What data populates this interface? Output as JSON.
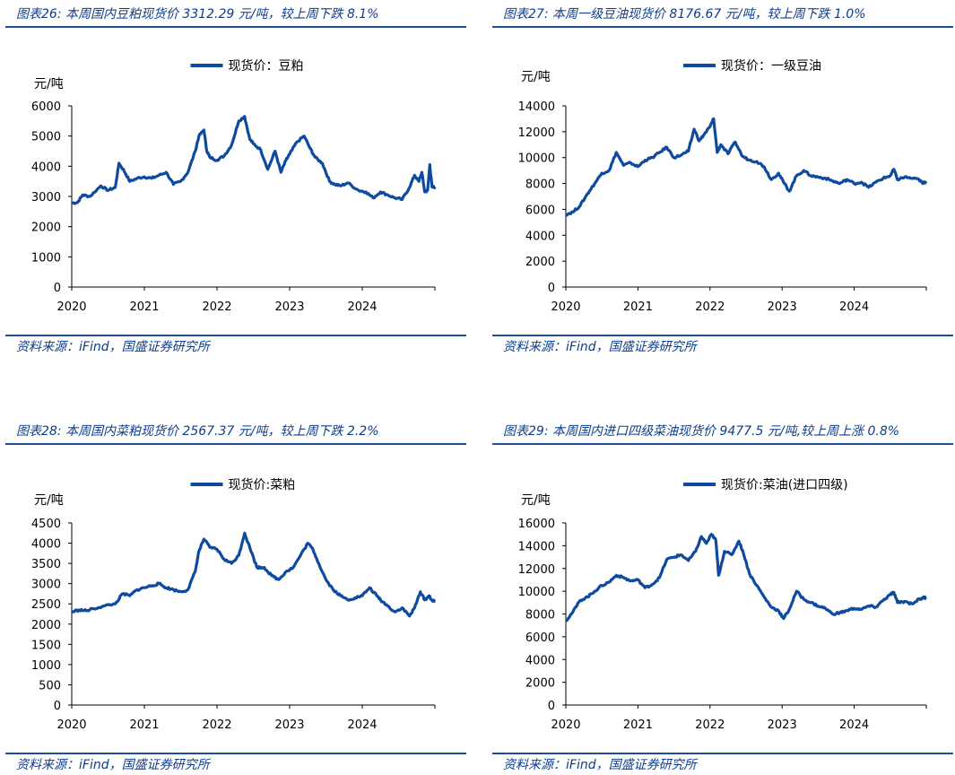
{
  "source": "资料来源：iFind，国盛证券研究所",
  "colors": {
    "line": "#0d4aa0",
    "accent": "#1f4e9c",
    "text": "#0d3d8c"
  },
  "panels": [
    {
      "title": "图表26:  本周国内豆粕现货价 3312.29 元/吨，较上周下跌 8.1%",
      "chart_data": {
        "type": "line",
        "legend": "现货价：豆粕",
        "ylabel": "元/吨",
        "ylim": [
          0,
          6000
        ],
        "yticks": [
          0,
          1000,
          2000,
          3000,
          4000,
          5000,
          6000
        ],
        "xticks": [
          "2020",
          "2021",
          "2022",
          "2023",
          "2024"
        ],
        "xlim": [
          2020.0,
          2025.0
        ],
        "series": [
          {
            "x": [
              2020.0,
              2020.08,
              2020.15,
              2020.25,
              2020.4,
              2020.5,
              2020.6,
              2020.65,
              2020.72,
              2020.8,
              2020.9,
              2021.0,
              2021.1,
              2021.2,
              2021.3,
              2021.4,
              2021.5,
              2021.6,
              2021.7,
              2021.75,
              2021.82,
              2021.86,
              2021.9,
              2022.0,
              2022.1,
              2022.2,
              2022.3,
              2022.38,
              2022.45,
              2022.5,
              2022.6,
              2022.7,
              2022.8,
              2022.88,
              2022.95,
              2023.0,
              2023.1,
              2023.2,
              2023.28,
              2023.35,
              2023.45,
              2023.55,
              2023.62,
              2023.7,
              2023.8,
              2023.95,
              2024.05,
              2024.15,
              2024.25,
              2024.35,
              2024.45,
              2024.55,
              2024.65,
              2024.72,
              2024.78,
              2024.82,
              2024.86,
              2024.9,
              2024.93,
              2024.96,
              2025.0
            ],
            "y": [
              2780,
              2800,
              3050,
              3000,
              3350,
              3200,
              3300,
              4100,
              3850,
              3500,
              3600,
              3650,
              3600,
              3700,
              3800,
              3400,
              3500,
              3800,
              4500,
              5000,
              5200,
              4500,
              4300,
              4200,
              4350,
              4700,
              5500,
              5650,
              4900,
              4750,
              4550,
              3900,
              4500,
              3800,
              4200,
              4400,
              4800,
              5000,
              4600,
              4300,
              4100,
              3500,
              3400,
              3350,
              3450,
              3200,
              3150,
              2950,
              3150,
              3050,
              2950,
              2900,
              3300,
              3700,
              3500,
              3800,
              3150,
              3200,
              4050,
              3312,
              3312
            ]
          }
        ]
      }
    },
    {
      "title": "图表27:  本周一级豆油现货价 8176.67 元/吨，较上周下跌 1.0%",
      "chart_data": {
        "type": "line",
        "legend": "现货价：一级豆油",
        "ylabel": "元/吨",
        "ylim": [
          0,
          14000
        ],
        "yticks": [
          0,
          2000,
          4000,
          6000,
          8000,
          10000,
          12000,
          14000
        ],
        "xticks": [
          "2020",
          "2021",
          "2022",
          "2023",
          "2024"
        ],
        "xlim": [
          2020.0,
          2025.0
        ],
        "series": [
          {
            "x": [
              2020.0,
              2020.1,
              2020.2,
              2020.3,
              2020.4,
              2020.5,
              2020.6,
              2020.7,
              2020.8,
              2020.9,
              2021.0,
              2021.1,
              2021.2,
              2021.3,
              2021.4,
              2021.5,
              2021.6,
              2021.7,
              2021.78,
              2021.85,
              2021.92,
              2022.0,
              2022.05,
              2022.1,
              2022.15,
              2022.25,
              2022.35,
              2022.45,
              2022.55,
              2022.65,
              2022.75,
              2022.85,
              2022.95,
              2023.02,
              2023.1,
              2023.2,
              2023.3,
              2023.4,
              2023.5,
              2023.6,
              2023.7,
              2023.8,
              2023.9,
              2024.0,
              2024.1,
              2024.2,
              2024.3,
              2024.4,
              2024.5,
              2024.55,
              2024.6,
              2024.7,
              2024.8,
              2024.9,
              2024.95,
              2025.0
            ],
            "y": [
              5600,
              5800,
              6300,
              7200,
              8000,
              8800,
              9000,
              10400,
              9400,
              9600,
              9300,
              9800,
              10000,
              10400,
              10800,
              10000,
              10200,
              10500,
              12200,
              11300,
              11800,
              12400,
              13000,
              10400,
              11000,
              10300,
              11200,
              10100,
              9800,
              9700,
              9300,
              8300,
              8800,
              8100,
              7400,
              8600,
              9000,
              8600,
              8500,
              8400,
              8200,
              8000,
              8300,
              8000,
              8100,
              7700,
              8100,
              8400,
              8600,
              9100,
              8300,
              8500,
              8400,
              8300,
              8000,
              8177
            ]
          }
        ]
      }
    },
    {
      "title": "图表28:  本周国内菜粕现货价 2567.37 元/吨，较上周下跌 2.2%",
      "chart_data": {
        "type": "line",
        "legend": "现货价:菜粕",
        "ylabel": "元/吨",
        "ylim": [
          0,
          4500
        ],
        "yticks": [
          0,
          500,
          1000,
          1500,
          2000,
          2500,
          3000,
          3500,
          4000,
          4500
        ],
        "xticks": [
          "2020",
          "2021",
          "2022",
          "2023",
          "2024"
        ],
        "xlim": [
          2020.0,
          2025.0
        ],
        "series": [
          {
            "x": [
              2020.0,
              2020.1,
              2020.2,
              2020.3,
              2020.45,
              2020.6,
              2020.7,
              2020.8,
              2020.9,
              2021.0,
              2021.1,
              2021.2,
              2021.3,
              2021.4,
              2021.5,
              2021.6,
              2021.7,
              2021.75,
              2021.82,
              2021.9,
              2022.0,
              2022.1,
              2022.2,
              2022.3,
              2022.38,
              2022.45,
              2022.55,
              2022.65,
              2022.75,
              2022.85,
              2022.95,
              2023.05,
              2023.15,
              2023.25,
              2023.32,
              2023.4,
              2023.5,
              2023.6,
              2023.7,
              2023.8,
              2023.9,
              2024.0,
              2024.1,
              2024.2,
              2024.25,
              2024.35,
              2024.45,
              2024.55,
              2024.65,
              2024.72,
              2024.8,
              2024.86,
              2024.92,
              2024.97,
              2025.0
            ],
            "y": [
              2300,
              2350,
              2330,
              2380,
              2450,
              2500,
              2750,
              2700,
              2850,
              2900,
              2950,
              3000,
              2900,
              2850,
              2800,
              2850,
              3300,
              3800,
              4100,
              3900,
              3850,
              3600,
              3500,
              3700,
              4250,
              3900,
              3400,
              3400,
              3200,
              3100,
              3300,
              3400,
              3700,
              4000,
              3850,
              3500,
              3100,
              2850,
              2700,
              2600,
              2650,
              2700,
              2900,
              2700,
              2600,
              2450,
              2300,
              2400,
              2200,
              2400,
              2800,
              2600,
              2700,
              2567,
              2567
            ]
          }
        ]
      }
    },
    {
      "title": "图表29:  本周国内进口四级菜油现货价 9477.5 元/吨,较上周上涨 0.8%",
      "chart_data": {
        "type": "line",
        "legend": "现货价:菜油(进口四级)",
        "ylabel": "元/吨",
        "ylim": [
          0,
          16000
        ],
        "yticks": [
          0,
          2000,
          4000,
          6000,
          8000,
          10000,
          12000,
          14000,
          16000
        ],
        "xticks": [
          "2020",
          "2021",
          "2022",
          "2023",
          "2024"
        ],
        "xlim": [
          2020.0,
          2025.0
        ],
        "series": [
          {
            "x": [
              2020.0,
              2020.1,
              2020.2,
              2020.3,
              2020.4,
              2020.5,
              2020.6,
              2020.7,
              2020.8,
              2020.9,
              2021.0,
              2021.1,
              2021.2,
              2021.3,
              2021.4,
              2021.5,
              2021.6,
              2021.7,
              2021.8,
              2021.88,
              2021.95,
              2022.02,
              2022.08,
              2022.12,
              2022.2,
              2022.3,
              2022.4,
              2022.45,
              2022.55,
              2022.65,
              2022.75,
              2022.85,
              2022.95,
              2023.02,
              2023.1,
              2023.2,
              2023.3,
              2023.4,
              2023.5,
              2023.6,
              2023.7,
              2023.8,
              2023.9,
              2024.0,
              2024.1,
              2024.2,
              2024.3,
              2024.4,
              2024.5,
              2024.55,
              2024.6,
              2024.7,
              2024.8,
              2024.9,
              2024.95,
              2025.0
            ],
            "y": [
              7400,
              8200,
              9200,
              9500,
              10000,
              10500,
              10800,
              11400,
              11200,
              10900,
              11000,
              10300,
              10600,
              11200,
              12800,
              13000,
              13200,
              12700,
              13500,
              14800,
              14200,
              15000,
              14500,
              11400,
              13500,
              13200,
              14400,
              13600,
              11500,
              10500,
              9500,
              8600,
              8300,
              7600,
              8400,
              10000,
              9300,
              9000,
              8700,
              8500,
              8000,
              8100,
              8300,
              8500,
              8400,
              8700,
              8600,
              9200,
              9700,
              9900,
              9000,
              9100,
              8900,
              9300,
              9400,
              9478
            ]
          }
        ]
      }
    }
  ]
}
